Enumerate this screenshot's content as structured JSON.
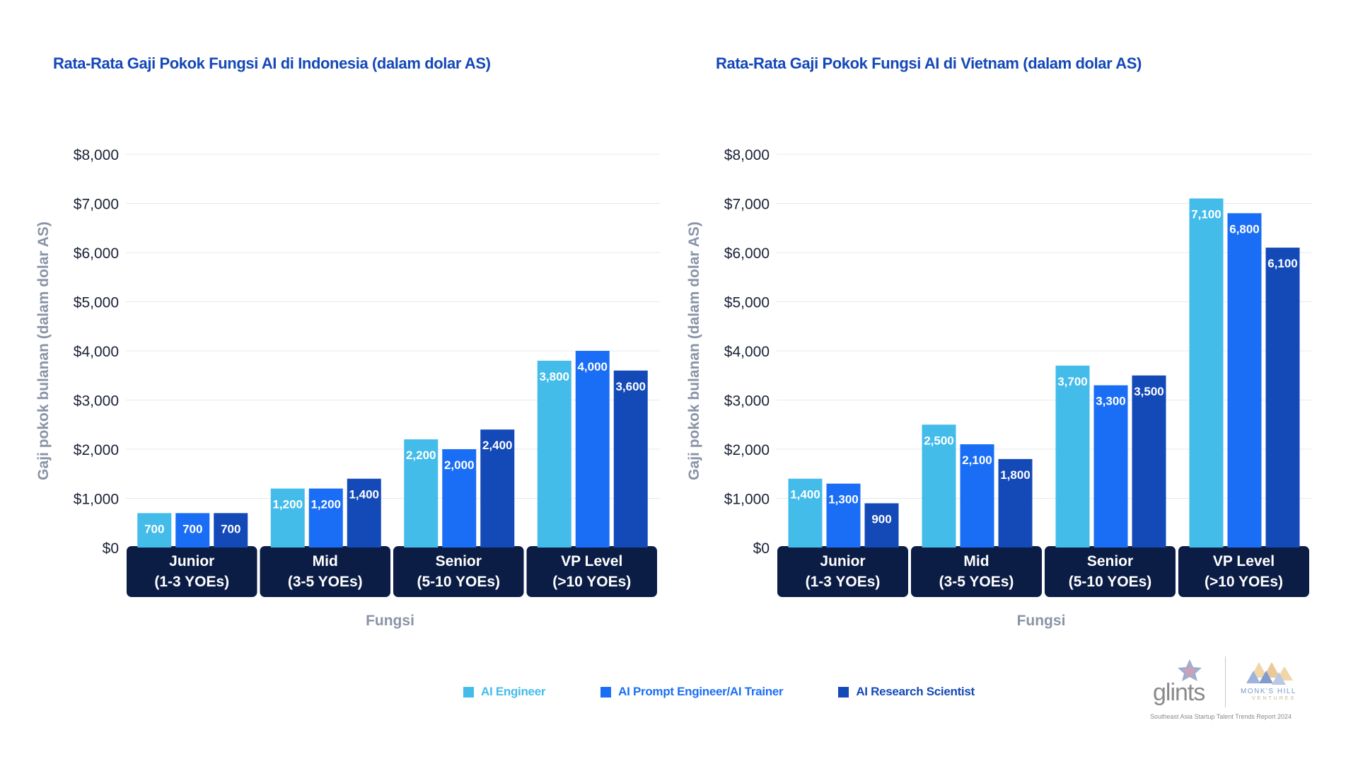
{
  "colors": {
    "ai_engineer": "#43bcea",
    "ai_prompt_engineer": "#1a6ef5",
    "ai_research_scientist": "#1449b8",
    "category_band": "#0b1d45",
    "title": "#1448b8",
    "axis_text": "#8a94a6"
  },
  "legend": [
    {
      "label": "AI Engineer",
      "color": "#43bcea"
    },
    {
      "label": "AI Prompt Engineer/AI Trainer",
      "color": "#1a6ef5"
    },
    {
      "label": "AI Research Scientist",
      "color": "#1449b8"
    }
  ],
  "chart_data": [
    {
      "type": "bar",
      "title": "Rata-Rata Gaji Pokok Fungsi AI di Indonesia (dalam dolar AS)",
      "xlabel": "Fungsi",
      "ylabel": "Gaji pokok bulanan (dalam dolar AS)",
      "ylim": [
        0,
        8000
      ],
      "yticks": [
        "$0",
        "$1,000",
        "$2,000",
        "$3,000",
        "$4,000",
        "$5,000",
        "$6,000",
        "$7,000",
        "$8,000"
      ],
      "categories": [
        {
          "line1": "Junior",
          "line2": "(1-3 YOEs)"
        },
        {
          "line1": "Mid",
          "line2": "(3-5 YOEs)"
        },
        {
          "line1": "Senior",
          "line2": "(5-10 YOEs)"
        },
        {
          "line1": "VP Level",
          "line2": "(>10 YOEs)"
        }
      ],
      "series": [
        {
          "name": "AI Engineer",
          "values": [
            700,
            1200,
            2200,
            3800
          ],
          "labels": [
            "700",
            "1,200",
            "2,200",
            "3,800"
          ]
        },
        {
          "name": "AI Prompt Engineer/AI Trainer",
          "values": [
            700,
            1200,
            2000,
            4000
          ],
          "labels": [
            "700",
            "1,200",
            "2,000",
            "4,000"
          ]
        },
        {
          "name": "AI Research Scientist",
          "values": [
            700,
            1400,
            2400,
            3600
          ],
          "labels": [
            "700",
            "1,400",
            "2,400",
            "3,600"
          ]
        }
      ],
      "grid": true,
      "legend_position": "bottom"
    },
    {
      "type": "bar",
      "title": "Rata-Rata Gaji Pokok Fungsi AI di Vietnam  (dalam dolar AS)",
      "xlabel": "Fungsi",
      "ylabel": "Gaji pokok bulanan (dalam dolar AS)",
      "ylim": [
        0,
        8000
      ],
      "yticks": [
        "$0",
        "$1,000",
        "$2,000",
        "$3,000",
        "$4,000",
        "$5,000",
        "$6,000",
        "$7,000",
        "$8,000"
      ],
      "categories": [
        {
          "line1": "Junior",
          "line2": "(1-3 YOEs)"
        },
        {
          "line1": "Mid",
          "line2": "(3-5 YOEs)"
        },
        {
          "line1": "Senior",
          "line2": "(5-10 YOEs)"
        },
        {
          "line1": "VP Level",
          "line2": "(>10 YOEs)"
        }
      ],
      "series": [
        {
          "name": "AI Engineer",
          "values": [
            1400,
            2500,
            3700,
            7100
          ],
          "labels": [
            "1,400",
            "2,500",
            "3,700",
            "7,100"
          ]
        },
        {
          "name": "AI Prompt Engineer/AI Trainer",
          "values": [
            1300,
            2100,
            3300,
            6800
          ],
          "labels": [
            "1,300",
            "2,100",
            "3,300",
            "6,800"
          ]
        },
        {
          "name": "AI Research Scientist",
          "values": [
            900,
            1800,
            3500,
            6100
          ],
          "labels": [
            "900",
            "1,800",
            "3,500",
            "6,100"
          ]
        }
      ],
      "grid": true,
      "legend_position": "bottom"
    }
  ],
  "footer": {
    "brand_left": "glints",
    "brand_right": "MONK'S HILL",
    "brand_right_sub": "VENTURES",
    "report": "Southeast Asia Startup Talent Trends Report 2024"
  }
}
